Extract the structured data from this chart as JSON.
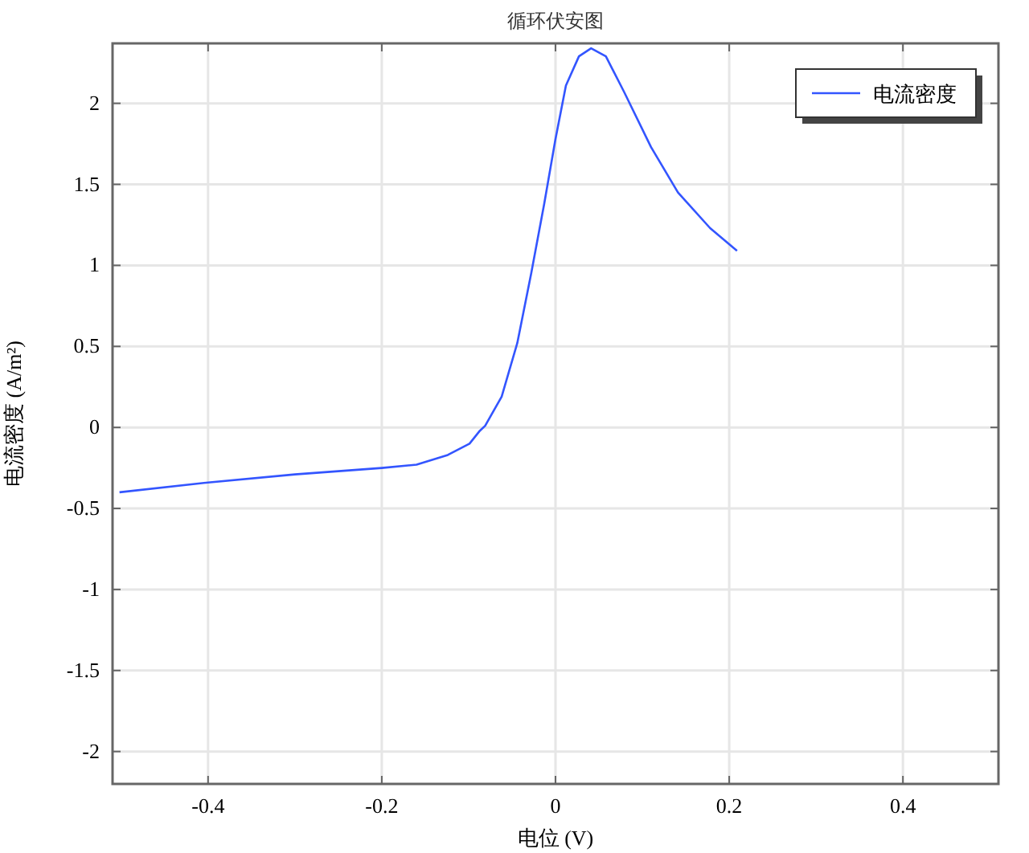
{
  "chart_data": {
    "type": "line",
    "title": "循环伏安图",
    "xlabel": "电位 (V)",
    "ylabel": "电流密度 (A/m²)",
    "xlim": [
      -0.51,
      0.51
    ],
    "ylim": [
      -2.2,
      2.37
    ],
    "xticks": [
      -0.4,
      -0.2,
      0,
      0.2,
      0.4
    ],
    "yticks": [
      -2,
      -1.5,
      -1,
      -0.5,
      0,
      0.5,
      1,
      1.5,
      2
    ],
    "grid": true,
    "legend": "top right",
    "series": [
      {
        "name": "电流密度",
        "color": "#3355ff",
        "x": [
          -0.502,
          -0.4,
          -0.3,
          -0.2,
          -0.16,
          -0.13,
          -0.124,
          -0.099,
          -0.087,
          -0.081,
          -0.062,
          -0.044,
          -0.028,
          -0.013,
          0,
          0.012,
          0.027,
          0.041,
          0.058,
          0.079,
          0.11,
          0.141,
          0.178,
          0.209
        ],
        "values": [
          -0.4,
          -0.34,
          -0.29,
          -0.25,
          -0.23,
          -0.18,
          -0.17,
          -0.1,
          -0.02,
          0.01,
          0.19,
          0.52,
          0.95,
          1.38,
          1.78,
          2.11,
          2.29,
          2.34,
          2.29,
          2.07,
          1.73,
          1.45,
          1.23,
          1.09
        ]
      }
    ]
  }
}
